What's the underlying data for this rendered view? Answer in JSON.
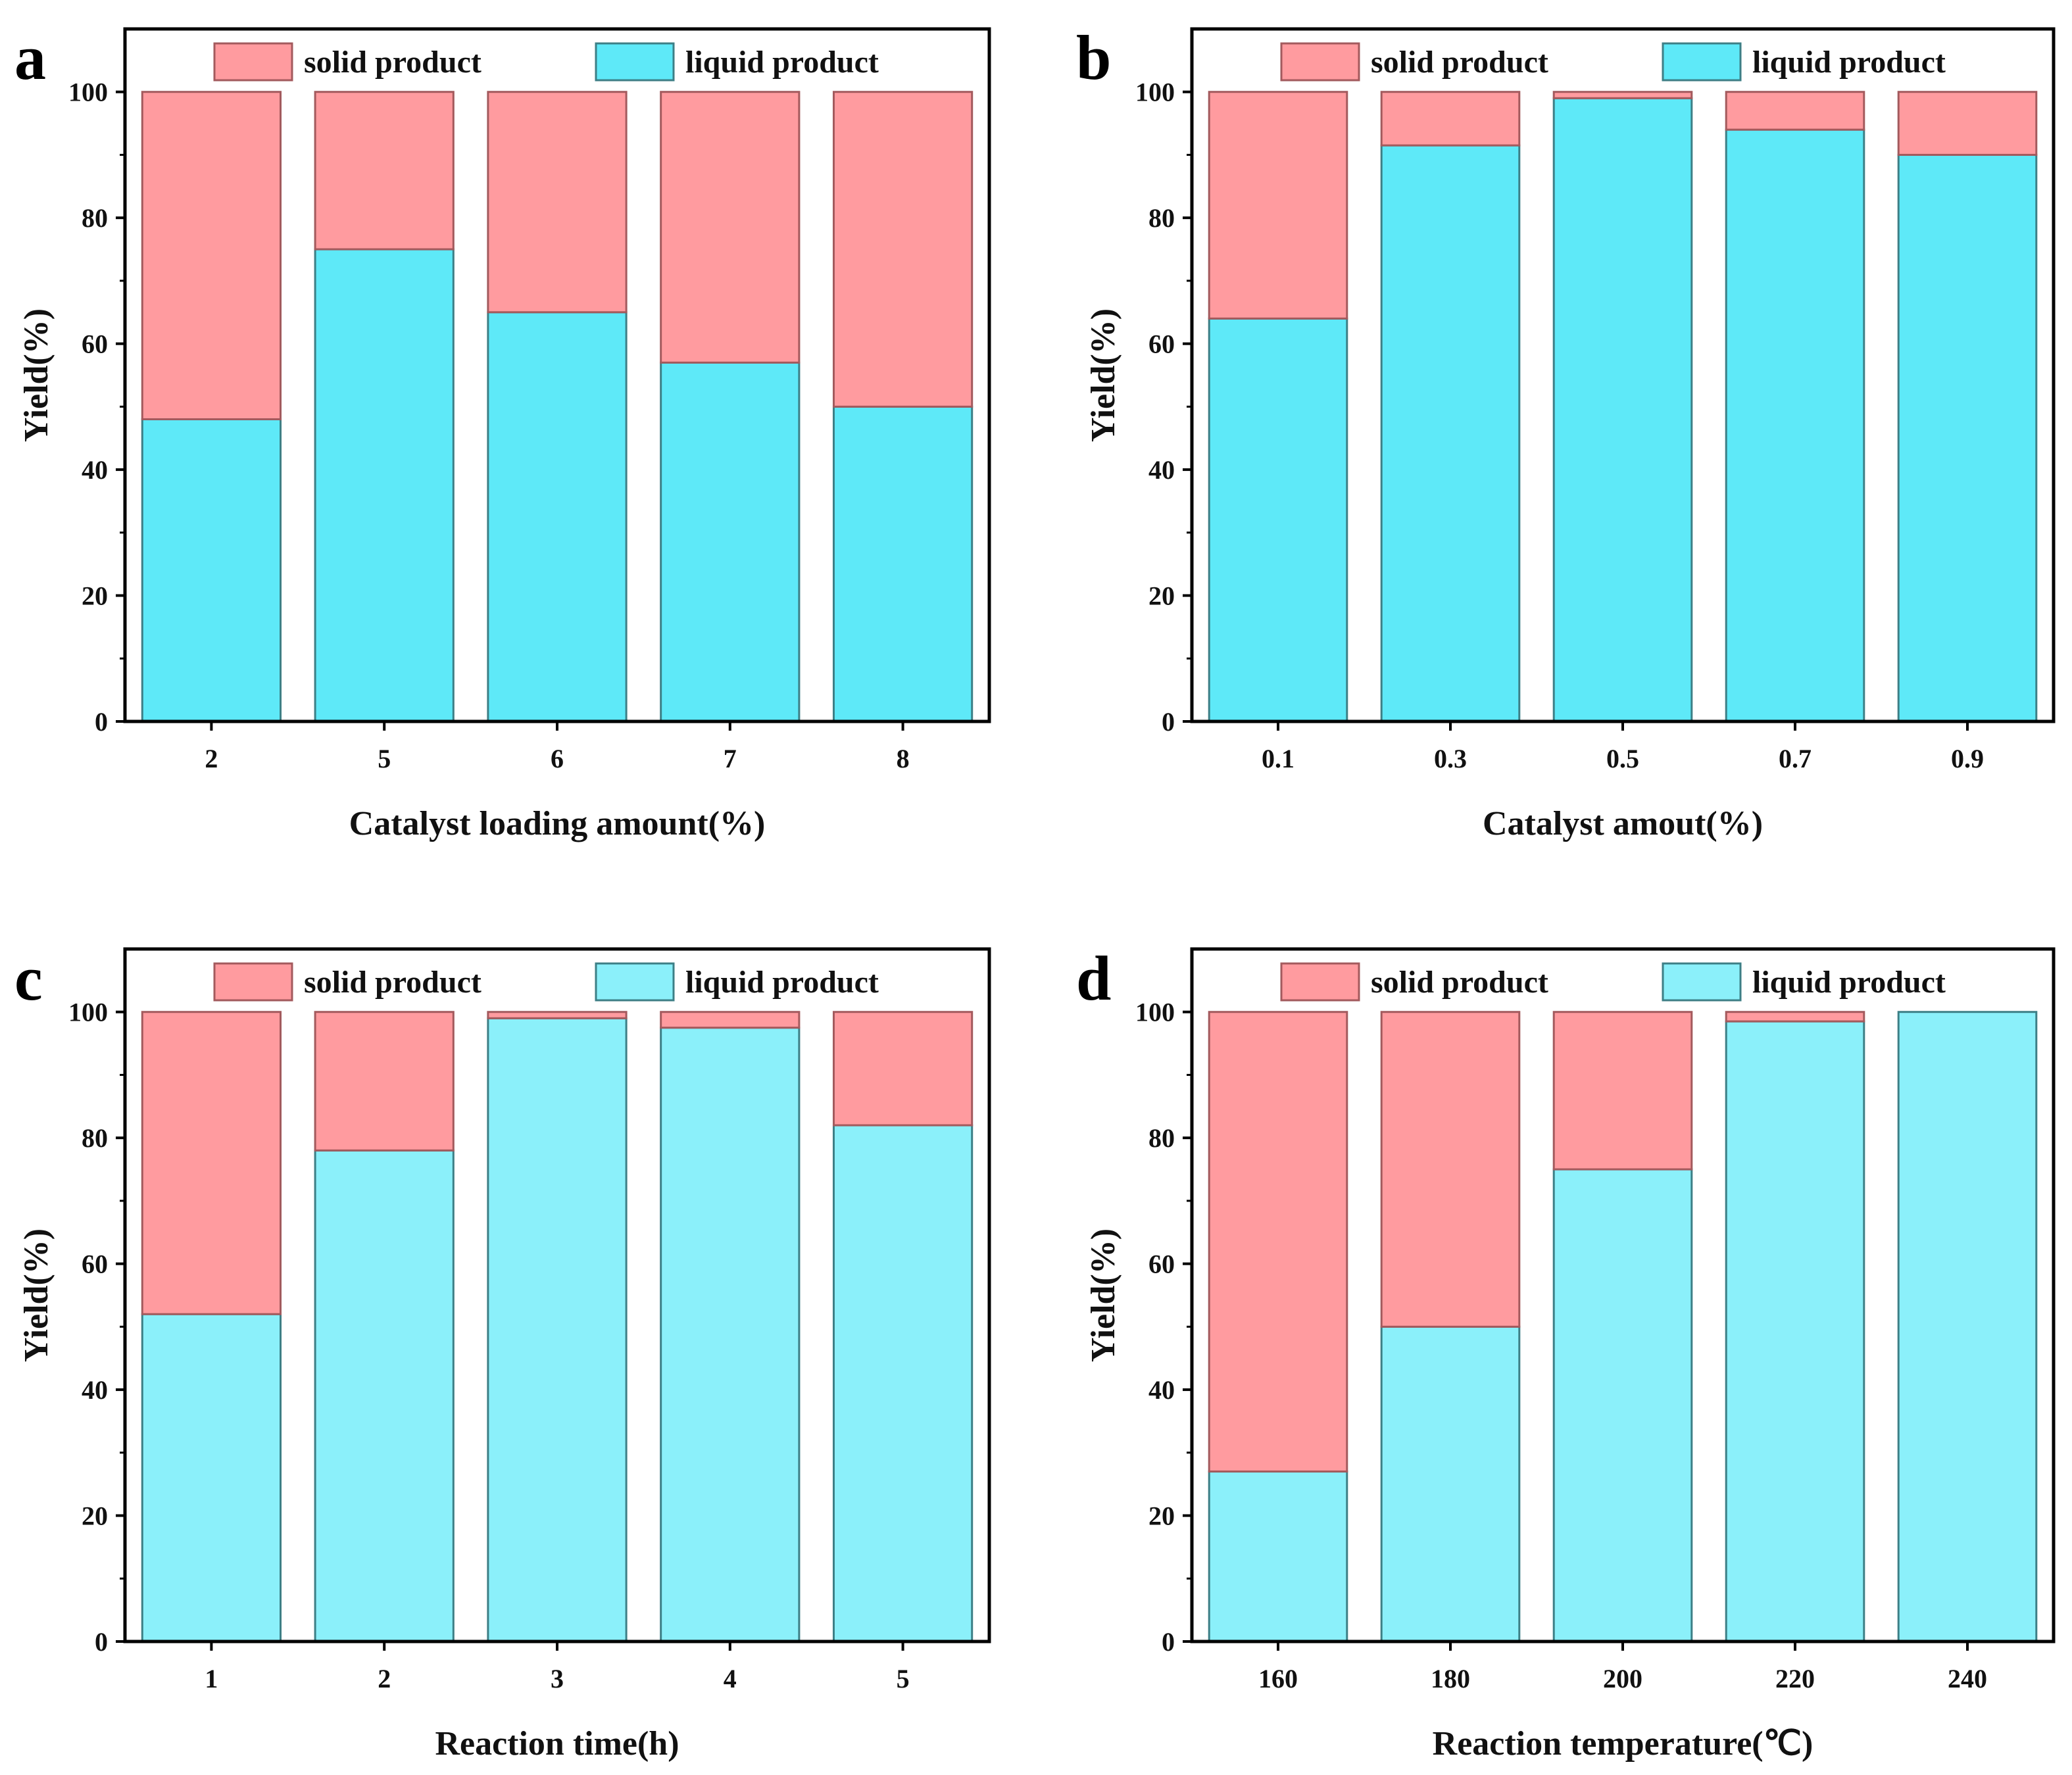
{
  "chart_data": [
    {
      "panel": "a",
      "type": "bar",
      "stacked": true,
      "xlabel": "Catalyst loading amount(%)",
      "ylabel": "Yield(%)",
      "ylim": [
        0,
        110
      ],
      "yticks": [
        0,
        20,
        40,
        60,
        80,
        100
      ],
      "categories": [
        "2",
        "5",
        "6",
        "7",
        "8"
      ],
      "series": [
        {
          "name": "liquid product",
          "color": "#5ee9f8",
          "values": [
            48,
            75,
            65,
            57,
            50
          ]
        },
        {
          "name": "solid product",
          "color": "#ff9b9f",
          "values": [
            52,
            25,
            35,
            43,
            50
          ]
        }
      ],
      "legend": "top"
    },
    {
      "panel": "b",
      "type": "bar",
      "stacked": true,
      "xlabel": "Catalyst amout(%)",
      "ylabel": "Yield(%)",
      "ylim": [
        0,
        110
      ],
      "yticks": [
        0,
        20,
        40,
        60,
        80,
        100
      ],
      "categories": [
        "0.1",
        "0.3",
        "0.5",
        "0.7",
        "0.9"
      ],
      "series": [
        {
          "name": "liquid product",
          "color": "#5ee9f8",
          "values": [
            64,
            91.5,
            99,
            94,
            90
          ]
        },
        {
          "name": "solid product",
          "color": "#ff9b9f",
          "values": [
            36,
            8.5,
            1,
            6,
            10
          ]
        }
      ],
      "legend": "top"
    },
    {
      "panel": "c",
      "type": "bar",
      "stacked": true,
      "xlabel": "Reaction time(h)",
      "ylabel": "Yield(%)",
      "ylim": [
        0,
        110
      ],
      "yticks": [
        0,
        20,
        40,
        60,
        80,
        100
      ],
      "categories": [
        "1",
        "2",
        "3",
        "4",
        "5"
      ],
      "series": [
        {
          "name": "liquid product",
          "color": "#8bf0fa",
          "values": [
            52,
            78,
            99,
            97.5,
            82
          ]
        },
        {
          "name": "solid product",
          "color": "#ff9b9f",
          "values": [
            48,
            22,
            1,
            2.5,
            18
          ]
        }
      ],
      "legend": "top"
    },
    {
      "panel": "d",
      "type": "bar",
      "stacked": true,
      "xlabel": "Reaction temperature(℃)",
      "ylabel": "Yield(%)",
      "ylim": [
        0,
        110
      ],
      "yticks": [
        0,
        20,
        40,
        60,
        80,
        100
      ],
      "categories": [
        "160",
        "180",
        "200",
        "220",
        "240"
      ],
      "series": [
        {
          "name": "liquid product",
          "color": "#8bf0fa",
          "values": [
            27,
            50,
            75,
            98.5,
            100
          ]
        },
        {
          "name": "solid product",
          "color": "#ff9b9f",
          "values": [
            73,
            50,
            25,
            1.5,
            0
          ]
        }
      ],
      "legend": "top"
    }
  ]
}
